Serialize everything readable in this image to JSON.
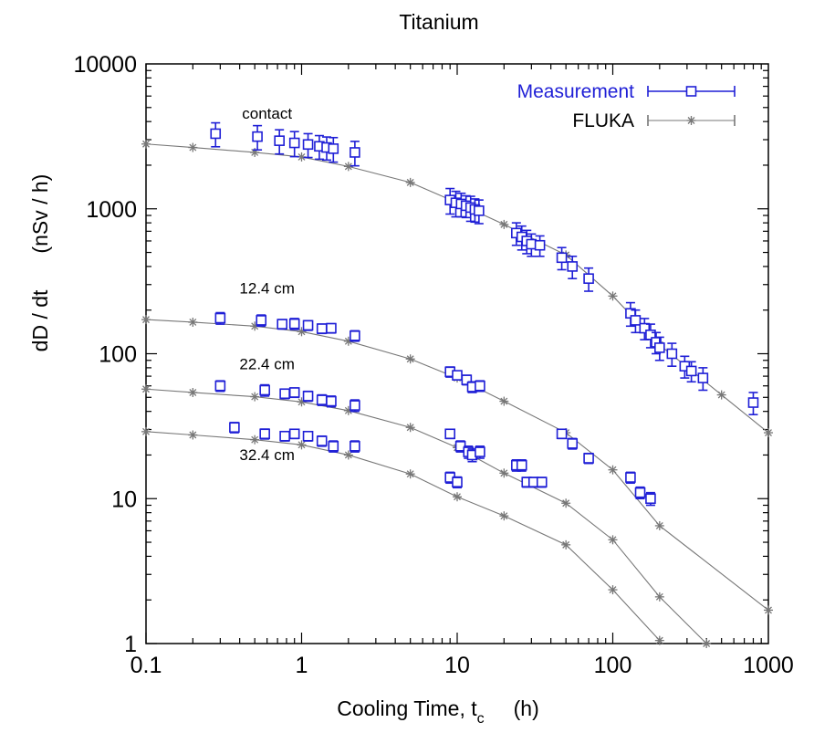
{
  "chart_data": {
    "type": "scatter",
    "title": "Titanium",
    "xlabel": "Cooling Time, t",
    "xlabel_sub": "c",
    "xlabel_unit": "(h)",
    "ylabel": "dD / dt",
    "ylabel_unit": "(nSv / h)",
    "x_scale": "log",
    "y_scale": "log",
    "xlim": [
      0.1,
      1000
    ],
    "ylim": [
      1,
      10000
    ],
    "x_ticks": [
      0.1,
      1,
      10,
      100,
      1000
    ],
    "x_tick_labels": [
      "0.1",
      "1",
      "10",
      "100",
      "1000"
    ],
    "y_ticks": [
      1,
      10,
      100,
      1000,
      10000
    ],
    "y_tick_labels": [
      "1",
      "10",
      "100",
      "1000",
      "10000"
    ],
    "grid": false,
    "legend_position": "top-right",
    "colors": {
      "measurement": "#1f1fd6",
      "fluka": "#777777"
    },
    "legend": [
      {
        "label": "Measurement",
        "marker": "open-square",
        "color": "#1f1fd6"
      },
      {
        "label": "FLUKA",
        "marker": "asterisk",
        "color": "#777777"
      }
    ],
    "annotations": [
      {
        "text": "contact",
        "x": 0.6,
        "y": 4200
      },
      {
        "text": "12.4 cm",
        "x": 0.6,
        "y": 260
      },
      {
        "text": "22.4 cm",
        "x": 0.6,
        "y": 78
      },
      {
        "text": "32.4 cm",
        "x": 0.6,
        "y": 18.5
      }
    ],
    "series": [
      {
        "name": "Measurement",
        "group": "contact",
        "kind": "measurement",
        "points": [
          [
            0.28,
            3300,
            620
          ],
          [
            0.52,
            3150,
            600
          ],
          [
            0.72,
            2950,
            560
          ],
          [
            0.9,
            2850,
            560
          ],
          [
            1.1,
            2780,
            520
          ],
          [
            1.3,
            2700,
            500
          ],
          [
            1.45,
            2650,
            480
          ],
          [
            1.6,
            2600,
            500
          ],
          [
            2.2,
            2450,
            470
          ],
          [
            9.0,
            1150,
            230
          ],
          [
            9.8,
            1100,
            220
          ],
          [
            10.6,
            1080,
            200
          ],
          [
            11.4,
            1050,
            180
          ],
          [
            12.2,
            1020,
            200
          ],
          [
            13.0,
            990,
            180
          ],
          [
            13.8,
            970,
            180
          ],
          [
            24.0,
            680,
            120
          ],
          [
            26.0,
            640,
            120
          ],
          [
            28.0,
            600,
            110
          ],
          [
            30.0,
            570,
            100
          ],
          [
            34.0,
            560,
            90
          ],
          [
            47.0,
            460,
            80
          ],
          [
            55.0,
            400,
            70
          ],
          [
            70.0,
            330,
            60
          ],
          [
            130.0,
            190,
            35
          ],
          [
            140.0,
            170,
            30
          ],
          [
            160.0,
            150,
            25
          ],
          [
            175.0,
            135,
            25
          ],
          [
            190.0,
            120,
            20
          ],
          [
            200.0,
            110,
            20
          ],
          [
            240.0,
            100,
            18
          ],
          [
            290.0,
            82,
            14
          ],
          [
            320.0,
            76,
            12
          ],
          [
            380.0,
            68,
            12
          ],
          [
            800.0,
            46,
            8
          ]
        ]
      },
      {
        "name": "Measurement",
        "group": "12.4 cm",
        "kind": "measurement",
        "points": [
          [
            0.3,
            176,
            16
          ],
          [
            0.55,
            170,
            15
          ],
          [
            0.75,
            160,
            12
          ],
          [
            0.9,
            161,
            14
          ],
          [
            1.1,
            157,
            12
          ],
          [
            1.35,
            149,
            11
          ],
          [
            1.55,
            150,
            11
          ],
          [
            2.2,
            133,
            11
          ],
          [
            9.0,
            75,
            6
          ],
          [
            10.0,
            71,
            5
          ],
          [
            11.5,
            66,
            5
          ],
          [
            12.5,
            59,
            5
          ],
          [
            14.0,
            60,
            5
          ]
        ]
      },
      {
        "name": "Measurement",
        "group": "22.4 cm",
        "kind": "measurement",
        "points": [
          [
            0.3,
            60,
            5
          ],
          [
            0.58,
            56,
            5
          ],
          [
            0.78,
            53,
            4
          ],
          [
            0.9,
            54,
            4
          ],
          [
            1.1,
            51,
            4
          ],
          [
            1.35,
            48,
            4
          ],
          [
            1.55,
            47,
            4
          ],
          [
            2.2,
            44,
            4
          ],
          [
            9.0,
            28,
            2
          ],
          [
            10.5,
            23,
            2
          ],
          [
            11.8,
            21,
            2
          ],
          [
            12.5,
            20,
            2
          ],
          [
            14.0,
            21,
            2
          ],
          [
            24.0,
            17,
            1.5
          ],
          [
            26.0,
            17,
            1.5
          ],
          [
            28.0,
            13,
            1
          ],
          [
            31.0,
            13,
            1
          ],
          [
            35.0,
            13,
            1
          ],
          [
            47.0,
            28,
            2
          ],
          [
            55.0,
            24,
            2
          ],
          [
            70.0,
            19,
            1.5
          ],
          [
            130.0,
            14,
            1.2
          ],
          [
            150.0,
            11,
            1
          ],
          [
            175.0,
            10,
            1
          ]
        ]
      },
      {
        "name": "Measurement",
        "group": "32.4 cm",
        "kind": "measurement",
        "points": [
          [
            0.37,
            31,
            2.5
          ],
          [
            0.58,
            28,
            2.2
          ],
          [
            0.78,
            27,
            2
          ],
          [
            0.9,
            28,
            2
          ],
          [
            1.1,
            27,
            2
          ],
          [
            1.35,
            25,
            2
          ],
          [
            1.6,
            23,
            2
          ],
          [
            2.2,
            23,
            2
          ],
          [
            9.0,
            14,
            1.2
          ],
          [
            10.0,
            13,
            1.1
          ]
        ]
      },
      {
        "name": "FLUKA",
        "group": "contact",
        "kind": "fluka",
        "points": [
          [
            0.1,
            2800
          ],
          [
            0.2,
            2650
          ],
          [
            0.5,
            2450
          ],
          [
            1,
            2280
          ],
          [
            2,
            1960
          ],
          [
            5,
            1520
          ],
          [
            10,
            1100
          ],
          [
            20,
            780
          ],
          [
            50,
            480
          ],
          [
            100,
            250
          ],
          [
            200,
            115
          ],
          [
            500,
            52
          ],
          [
            1000,
            28.5
          ]
        ]
      },
      {
        "name": "FLUKA",
        "group": "12.4 cm",
        "kind": "fluka",
        "points": [
          [
            0.1,
            172
          ],
          [
            0.2,
            165
          ],
          [
            0.5,
            155
          ],
          [
            1,
            142
          ],
          [
            2,
            122
          ],
          [
            5,
            92
          ],
          [
            10,
            68
          ],
          [
            20,
            47
          ],
          [
            50,
            28.5
          ],
          [
            100,
            15.8
          ],
          [
            200,
            6.5
          ],
          [
            1000,
            1.7
          ]
        ]
      },
      {
        "name": "FLUKA",
        "group": "22.4 cm",
        "kind": "fluka",
        "points": [
          [
            0.1,
            57
          ],
          [
            0.2,
            54
          ],
          [
            0.5,
            50.5
          ],
          [
            1,
            46.5
          ],
          [
            2,
            40.5
          ],
          [
            5,
            31
          ],
          [
            10,
            22.5
          ],
          [
            20,
            15
          ],
          [
            50,
            9.3
          ],
          [
            100,
            5.2
          ],
          [
            200,
            2.1
          ],
          [
            400,
            1
          ]
        ]
      },
      {
        "name": "FLUKA",
        "group": "32.4 cm",
        "kind": "fluka",
        "points": [
          [
            0.1,
            29
          ],
          [
            0.2,
            27.5
          ],
          [
            0.5,
            25.5
          ],
          [
            1,
            23.5
          ],
          [
            2,
            20
          ],
          [
            5,
            14.8
          ],
          [
            10,
            10.3
          ],
          [
            20,
            7.6
          ],
          [
            50,
            4.8
          ],
          [
            100,
            2.35
          ],
          [
            200,
            1.05
          ]
        ]
      }
    ]
  }
}
